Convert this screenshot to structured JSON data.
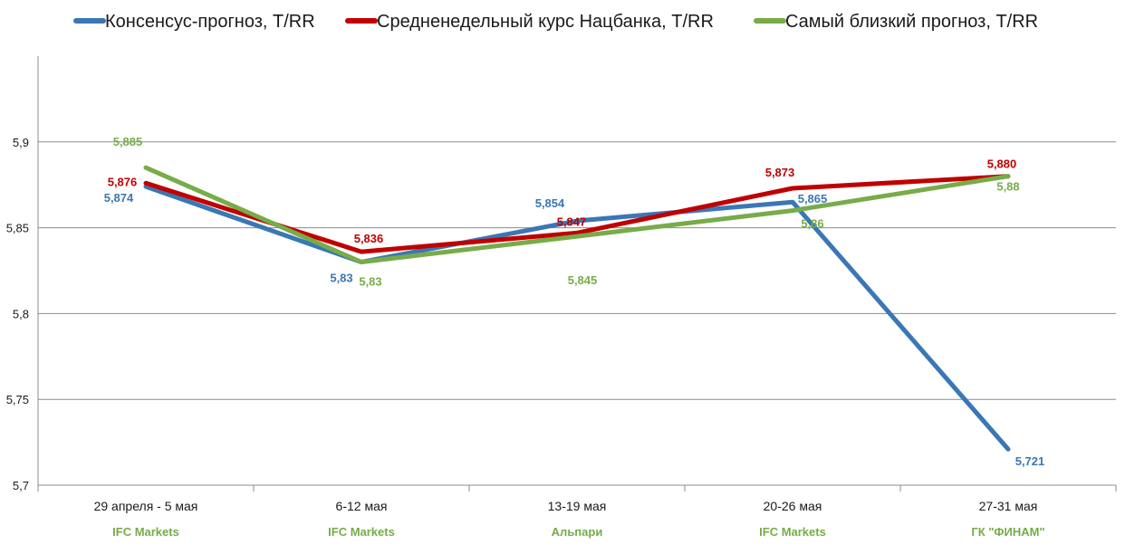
{
  "chart_data": {
    "type": "line",
    "categories": [
      "29 апреля - 5 мая",
      "6-12 мая",
      "13-19 мая",
      "20-26 мая",
      "27-31 мая"
    ],
    "category_sublabels": [
      "IFC Markets",
      "IFC Markets",
      "Альпари",
      "IFC Markets",
      "ГК \"ФИНАМ\""
    ],
    "ylim": [
      5.7,
      5.95
    ],
    "yticks": [
      5.7,
      5.75,
      5.8,
      5.85,
      5.9
    ],
    "ytick_labels": [
      "5,7",
      "5,75",
      "5,8",
      "5,85",
      "5,9"
    ],
    "grid": true,
    "legend_position": "top",
    "series": [
      {
        "name": "Консенсус-прогноз, T/RR",
        "color": "#3A77B5",
        "values": [
          5.874,
          5.83,
          5.854,
          5.865,
          5.721
        ],
        "labels": [
          "5,874",
          "5,83",
          "5,854",
          "5,865",
          "5,721"
        ]
      },
      {
        "name": "Средненедельный курс Нацбанка, T/RR",
        "color": "#C00000",
        "values": [
          5.876,
          5.836,
          5.847,
          5.873,
          5.88
        ],
        "labels": [
          "5,876",
          "5,836",
          "5,847",
          "5,873",
          "5,880"
        ]
      },
      {
        "name": "Самый близкий прогноз, T/RR",
        "color": "#77AC49",
        "values": [
          5.885,
          5.83,
          5.845,
          5.86,
          5.88
        ],
        "labels": [
          "5,885",
          "5,83",
          "5,845",
          "5,86",
          "5,88"
        ]
      }
    ]
  }
}
